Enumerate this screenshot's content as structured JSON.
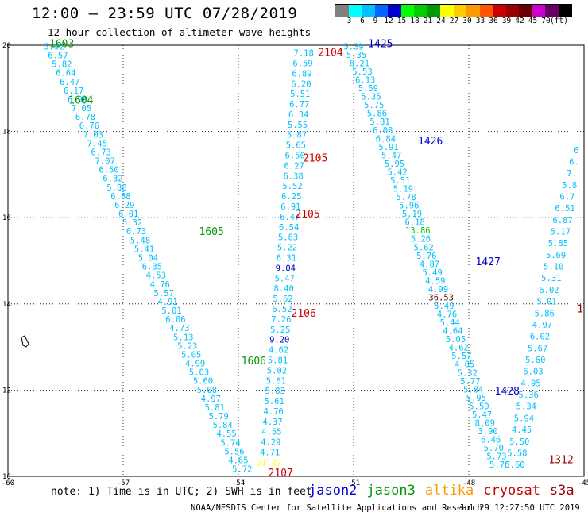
{
  "header": {
    "title": "12:00 – 23:59 UTC 07/28/2019",
    "subtitle": "12 hour collection of altimeter wave heights"
  },
  "colorbar": {
    "colors": [
      "#808080",
      "#00ffff",
      "#00bfff",
      "#0066ff",
      "#0000cc",
      "#00ff00",
      "#00cc00",
      "#009900",
      "#ffff00",
      "#ffcc00",
      "#ff9900",
      "#ff5500",
      "#cc0000",
      "#990000",
      "#660000",
      "#cc00cc",
      "#660066",
      "#000000"
    ],
    "labels": [
      "3",
      "6",
      "9",
      "12",
      "15",
      "18",
      "21",
      "24",
      "27",
      "30",
      "33",
      "36",
      "39",
      "42",
      "45",
      "70",
      "(ft)"
    ]
  },
  "chart_data": {
    "type": "scatter",
    "title": "12:00 – 23:59 UTC 07/28/2019",
    "subtitle": "12 hour collection of altimeter wave heights",
    "xlim": [
      -60,
      -45
    ],
    "ylim": [
      10,
      20
    ],
    "x_ticks": [
      "-60",
      "-57",
      "-54",
      "-51",
      "-48",
      "-45"
    ],
    "y_ticks": [
      "10",
      "12",
      "14",
      "16",
      "18",
      "20"
    ],
    "grid": true,
    "tracks": [
      {
        "name": "pass-left",
        "labels": [
          {
            "text": "1603",
            "satellite": "jason3",
            "lon": -58.6,
            "lat": 19.95
          },
          {
            "text": "1604",
            "satellite": "jason3",
            "lon": -58.1,
            "lat": 18.65
          },
          {
            "text": "1605",
            "satellite": "jason3",
            "lon": -54.7,
            "lat": 15.6
          },
          {
            "text": "1606",
            "satellite": "jason3",
            "lon": -53.6,
            "lat": 12.6
          }
        ],
        "start": [
          -58.8,
          19.9
        ],
        "end": [
          -53.9,
          10.1
        ],
        "values": [
          "5.92",
          "6.57",
          "5.82",
          "6.64",
          "6.47",
          "6.17",
          "6.90",
          "7.05",
          "6.78",
          "6.76",
          "7.03",
          "7.45",
          "6.73",
          "7.07",
          "6.50",
          "6.32",
          "5.88",
          "6.88",
          "6.29",
          "6.01",
          "5.32",
          "6.73",
          "5.48",
          "5.41",
          "5.04",
          "6.35",
          "4.53",
          "4.76",
          "5.57",
          "4.91",
          "5.01",
          "6.06",
          "4.73",
          "5.13",
          "5.23",
          "5.05",
          "4.99",
          "5.03",
          "5.60",
          "5.08",
          "4.97",
          "5.81",
          "5.79",
          "5.84",
          "4.55",
          "5.74",
          "5.56",
          "4.65",
          "5.72"
        ]
      },
      {
        "name": "pass-mid",
        "labels": [
          {
            "text": "2104",
            "satellite": "cryosat",
            "lon": -51.6,
            "lat": 19.75
          },
          {
            "text": "2105",
            "satellite": "cryosat",
            "lon": -52.0,
            "lat": 17.3
          },
          {
            "text": "2105",
            "satellite": "cryosat",
            "lon": -52.2,
            "lat": 16.0
          },
          {
            "text": "2106",
            "satellite": "cryosat",
            "lon": -52.3,
            "lat": 13.7
          },
          {
            "text": "2107",
            "satellite": "cryosat",
            "lon": -52.9,
            "lat": 10.0
          }
        ],
        "start": [
          -52.3,
          19.75
        ],
        "end": [
          -53.2,
          10.25
        ],
        "values": [
          "7.18",
          "6.59",
          "6.89",
          "6.20",
          "5.51",
          "6.77",
          "6.34",
          "5.55",
          "5.87",
          "5.65",
          "6.50",
          "6.27",
          "6.38",
          "5.52",
          "6.25",
          "6.91",
          "6.47",
          "6.54",
          "5.83",
          "5.22",
          "6.31",
          "9.04",
          "5.47",
          "8.40",
          "5.62",
          "6.52",
          "7.26",
          "5.25",
          "9.20",
          "4.62",
          "5.81",
          "5.02",
          "5.61",
          "5.83",
          "5.61",
          "4.70",
          "4.37",
          "4.55",
          "4.29",
          "4.71",
          "21.27"
        ],
        "highlight": [
          {
            "value": "9.04",
            "color": "#0000cc"
          },
          {
            "value": "9.20",
            "color": "#0000cc"
          },
          {
            "value": "21.27",
            "color": "#ffff00"
          }
        ]
      },
      {
        "name": "pass-right",
        "labels": [
          {
            "text": "1425",
            "satellite": "jason2",
            "lon": -50.3,
            "lat": 19.95
          },
          {
            "text": "1426",
            "satellite": "jason2",
            "lon": -49.0,
            "lat": 17.7
          },
          {
            "text": "1427",
            "satellite": "jason2",
            "lon": -47.5,
            "lat": 14.9
          },
          {
            "text": "1428",
            "satellite": "jason2",
            "lon": -47.0,
            "lat": 11.9
          }
        ],
        "start": [
          -51.0,
          19.9
        ],
        "end": [
          -47.2,
          10.2
        ],
        "values": [
          "5.39",
          "5.35",
          "6.21",
          "5.53",
          "6.13",
          "5.59",
          "5.35",
          "5.75",
          "5.86",
          "5.81",
          "6.08",
          "6.84",
          "5.91",
          "5.47",
          "5.95",
          "5.42",
          "5.51",
          "5.19",
          "5.78",
          "5.96",
          "5.19",
          "6.18",
          "13.86",
          "5.26",
          "5.62",
          "5.76",
          "4.87",
          "5.49",
          "4.59",
          "4.99",
          "36.53",
          "5.49",
          "4.76",
          "5.44",
          "4.64",
          "5.05",
          "4.62",
          "5.57",
          "4.85",
          "5.32",
          "5.77",
          "5.84",
          "5.95",
          "5.50",
          "5.47",
          "8.09",
          "3.90",
          "6.46",
          "5.70",
          "5.73",
          "5.76"
        ],
        "highlight": [
          {
            "value": "13.86",
            "color": "#00cc00"
          },
          {
            "value": "36.53",
            "color": "#660000"
          }
        ]
      },
      {
        "name": "pass-far-right",
        "labels": [
          {
            "text": "1312",
            "satellite": "s3a",
            "lon": -45.6,
            "lat": 10.3
          },
          {
            "text": "1",
            "satellite": "s3a",
            "lon": -45.1,
            "lat": 13.8
          }
        ],
        "start": [
          -46.8,
          10.2
        ],
        "end": [
          -45.2,
          17.5
        ],
        "values": [
          "5.60",
          "5.58",
          "5.50",
          "4.45",
          "5.94",
          "5.34",
          "5.36",
          "4.95",
          "6.03",
          "5.60",
          "5.67",
          "6.02",
          "4.97",
          "5.86",
          "5.01",
          "6.02",
          "5.31",
          "5.10",
          "5.69",
          "5.85",
          "5.17",
          "6.87",
          "6.51",
          "6.7",
          "5.8",
          "7.",
          "6.",
          "6"
        ]
      }
    ],
    "legend": [
      {
        "name": "jason2",
        "color": "#0000cc"
      },
      {
        "name": "jason3",
        "color": "#009900"
      },
      {
        "name": "altika",
        "color": "#ff9900"
      },
      {
        "name": "cryosat",
        "color": "#cc0000"
      },
      {
        "name": "s3a",
        "color": "#990000"
      }
    ],
    "value_color": "#00bfff"
  },
  "footer": {
    "note": "note: 1) Time is in UTC; 2) SWH is in feet",
    "credit": "NOAA/NESDIS Center for Satellite Applications and Research",
    "timestamp": "Jul 29 12:27:50 UTC 2019"
  }
}
